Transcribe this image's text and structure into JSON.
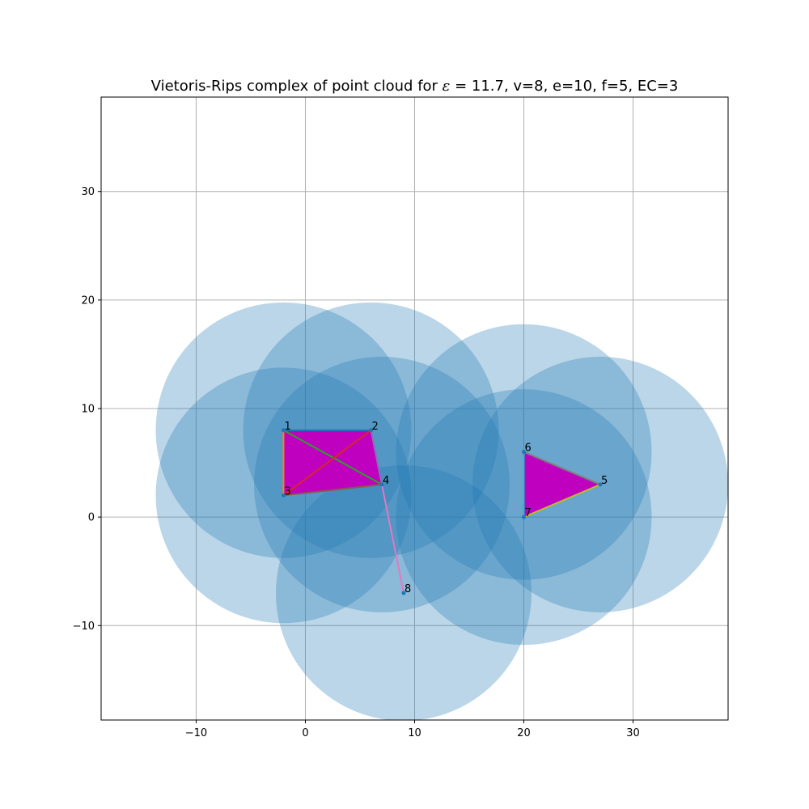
{
  "chart_data": {
    "type": "scatter",
    "title": "Vietoris-Rips complex of point cloud for ε = 11.7, v=8, e=10, f=5, EC=3",
    "title_parts": {
      "prefix": "Vietoris-Rips complex of point cloud for ",
      "epsilon_symbol": "ε",
      "suffix": " = 11.7, v=8, e=10, f=5, EC=3"
    },
    "epsilon": 11.7,
    "xlabel": "",
    "ylabel": "",
    "xlim": [
      -18.7,
      38.7
    ],
    "ylim": [
      -18.7,
      38.7
    ],
    "grid": true,
    "xticks": [
      "−10",
      "0",
      "10",
      "20",
      "30"
    ],
    "xtick_values": [
      -10,
      0,
      10,
      20,
      30
    ],
    "yticks": [
      "−10",
      "0",
      "10",
      "20",
      "30"
    ],
    "ytick_values": [
      -10,
      0,
      10,
      20,
      30
    ],
    "points": [
      {
        "label": "1",
        "x": -2,
        "y": 8
      },
      {
        "label": "2",
        "x": 6,
        "y": 8
      },
      {
        "label": "3",
        "x": -2,
        "y": 2
      },
      {
        "label": "4",
        "x": 7,
        "y": 3
      },
      {
        "label": "5",
        "x": 27,
        "y": 3
      },
      {
        "label": "6",
        "x": 20,
        "y": 6
      },
      {
        "label": "7",
        "x": 20,
        "y": 0
      },
      {
        "label": "8",
        "x": 9,
        "y": -7
      }
    ],
    "edges": [
      [
        1,
        2
      ],
      [
        1,
        3
      ],
      [
        1,
        4
      ],
      [
        2,
        3
      ],
      [
        2,
        4
      ],
      [
        3,
        4
      ],
      [
        4,
        8
      ],
      [
        5,
        6
      ],
      [
        5,
        7
      ],
      [
        6,
        7
      ]
    ],
    "faces": [
      [
        1,
        2,
        3
      ],
      [
        1,
        2,
        4
      ],
      [
        1,
        3,
        4
      ],
      [
        2,
        3,
        4
      ],
      [
        5,
        6,
        7
      ]
    ],
    "colors": {
      "ball": "#1f77b4",
      "face": "#bf00bf",
      "edges": [
        "#1f77b4",
        "#ff7f0e",
        "#2ca02c",
        "#d62728",
        "#9467bd",
        "#8c564b",
        "#e377c2",
        "#7f7f7f",
        "#bcbd22",
        "#17becf"
      ],
      "grid": "#b0b0b0"
    }
  }
}
